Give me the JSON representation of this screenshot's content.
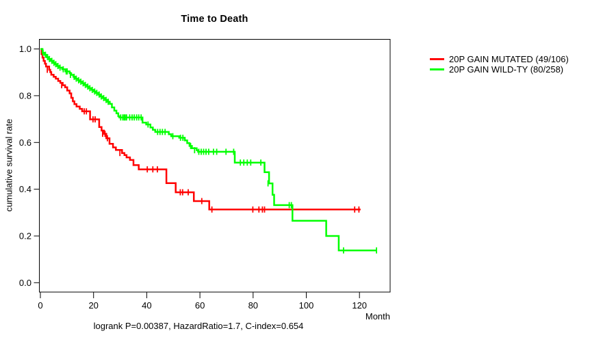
{
  "figure": {
    "title": "Time to Death",
    "y_axis_label": "cumulative survival rate",
    "x_axis_label": "Month",
    "caption": "logrank P=0.00387, HazardRatio=1.7, C-index=0.654"
  },
  "legend": {
    "entries": [
      {
        "label": "20P GAIN MUTATED (49/106)",
        "color": "#ff0000"
      },
      {
        "label": "20P GAIN WILD-TY (80/258)",
        "color": "#00ff00"
      }
    ]
  },
  "chart_data": {
    "type": "line",
    "subtype": "kaplan-meier-step",
    "title": "Time to Death",
    "xlabel": "Month",
    "ylabel": "cumulative survival rate",
    "xlim": [
      0,
      131.5
    ],
    "ylim": [
      0,
      1.05
    ],
    "grid": false,
    "legend_position": "right-outside",
    "x_ticks": [
      0,
      20,
      40,
      60,
      80,
      100,
      120
    ],
    "x_tick_labels": [
      "0",
      "20",
      "40",
      "60",
      "80",
      "100",
      "120"
    ],
    "y_ticks": [
      0.0,
      0.2,
      0.4,
      0.6,
      0.8,
      1.0
    ],
    "y_tick_labels": [
      "0.0",
      "0.2",
      "0.4",
      "0.6",
      "0.8",
      "1.0"
    ],
    "stats": {
      "logrank_p": 0.00387,
      "hazard_ratio": 1.7,
      "c_index": 0.654
    },
    "series": [
      {
        "name": "20P GAIN MUTATED (49/106)",
        "color": "#ff0000",
        "events": 49,
        "n": 106,
        "end_month": 120.4,
        "steps": [
          [
            0,
            1.0
          ],
          [
            0.4,
            0.978
          ],
          [
            0.8,
            0.963
          ],
          [
            1.2,
            0.949
          ],
          [
            1.7,
            0.937
          ],
          [
            2.1,
            0.925
          ],
          [
            3.3,
            0.911
          ],
          [
            3.7,
            0.901
          ],
          [
            4.1,
            0.89
          ],
          [
            5.0,
            0.881
          ],
          [
            5.8,
            0.873
          ],
          [
            6.7,
            0.863
          ],
          [
            7.5,
            0.855
          ],
          [
            8.4,
            0.845
          ],
          [
            9.3,
            0.836
          ],
          [
            10.1,
            0.822
          ],
          [
            11.0,
            0.81
          ],
          [
            11.6,
            0.791
          ],
          [
            12.2,
            0.776
          ],
          [
            12.8,
            0.764
          ],
          [
            13.6,
            0.754
          ],
          [
            14.8,
            0.744
          ],
          [
            15.7,
            0.733
          ],
          [
            18.7,
            0.699
          ],
          [
            22.1,
            0.666
          ],
          [
            23.0,
            0.651
          ],
          [
            23.9,
            0.637
          ],
          [
            24.8,
            0.618
          ],
          [
            26.0,
            0.594
          ],
          [
            27.3,
            0.579
          ],
          [
            28.4,
            0.568
          ],
          [
            30.7,
            0.555
          ],
          [
            31.6,
            0.546
          ],
          [
            32.4,
            0.536
          ],
          [
            33.7,
            0.525
          ],
          [
            35.0,
            0.503
          ],
          [
            37.0,
            0.485
          ],
          [
            47.4,
            0.426
          ],
          [
            50.9,
            0.387
          ],
          [
            57.7,
            0.349
          ],
          [
            63.5,
            0.313
          ]
        ],
        "censors": [
          [
            2.6,
            0.911
          ],
          [
            8.0,
            0.845
          ],
          [
            16.5,
            0.733
          ],
          [
            17.3,
            0.733
          ],
          [
            19.8,
            0.699
          ],
          [
            20.6,
            0.699
          ],
          [
            23.4,
            0.637
          ],
          [
            24.3,
            0.637
          ],
          [
            25.2,
            0.618
          ],
          [
            29.9,
            0.555
          ],
          [
            40.2,
            0.485
          ],
          [
            42.3,
            0.485
          ],
          [
            44.0,
            0.485
          ],
          [
            52.6,
            0.387
          ],
          [
            53.5,
            0.387
          ],
          [
            55.6,
            0.387
          ],
          [
            60.7,
            0.349
          ],
          [
            64.5,
            0.313
          ],
          [
            79.9,
            0.313
          ],
          [
            82.2,
            0.313
          ],
          [
            83.5,
            0.313
          ],
          [
            84.3,
            0.313
          ],
          [
            118.2,
            0.313
          ],
          [
            119.8,
            0.313
          ]
        ]
      },
      {
        "name": "20P GAIN WILD-TY (80/258)",
        "color": "#00ff00",
        "events": 80,
        "n": 258,
        "end_month": 126.4,
        "steps": [
          [
            0,
            1.0
          ],
          [
            0.8,
            0.984
          ],
          [
            1.6,
            0.975
          ],
          [
            2.4,
            0.965
          ],
          [
            3.1,
            0.957
          ],
          [
            3.9,
            0.949
          ],
          [
            4.7,
            0.941
          ],
          [
            5.5,
            0.935
          ],
          [
            6.3,
            0.927
          ],
          [
            7.1,
            0.92
          ],
          [
            8.2,
            0.913
          ],
          [
            9.4,
            0.904
          ],
          [
            11.0,
            0.896
          ],
          [
            11.6,
            0.889
          ],
          [
            12.4,
            0.881
          ],
          [
            13.2,
            0.873
          ],
          [
            14.1,
            0.866
          ],
          [
            14.9,
            0.86
          ],
          [
            15.8,
            0.853
          ],
          [
            16.6,
            0.846
          ],
          [
            17.5,
            0.839
          ],
          [
            18.3,
            0.832
          ],
          [
            19.2,
            0.825
          ],
          [
            20.1,
            0.818
          ],
          [
            20.9,
            0.812
          ],
          [
            21.8,
            0.805
          ],
          [
            22.6,
            0.797
          ],
          [
            23.5,
            0.79
          ],
          [
            24.4,
            0.782
          ],
          [
            25.2,
            0.774
          ],
          [
            26.1,
            0.765
          ],
          [
            26.9,
            0.75
          ],
          [
            27.8,
            0.736
          ],
          [
            28.6,
            0.725
          ],
          [
            29.3,
            0.712
          ],
          [
            29.7,
            0.707
          ],
          [
            38.4,
            0.685
          ],
          [
            39.8,
            0.677
          ],
          [
            41.4,
            0.664
          ],
          [
            42.3,
            0.654
          ],
          [
            43.2,
            0.645
          ],
          [
            48.3,
            0.635
          ],
          [
            49.2,
            0.627
          ],
          [
            52.2,
            0.62
          ],
          [
            54.3,
            0.609
          ],
          [
            55.2,
            0.597
          ],
          [
            56.1,
            0.585
          ],
          [
            57.0,
            0.575
          ],
          [
            58.8,
            0.567
          ],
          [
            59.3,
            0.56
          ],
          [
            73.1,
            0.514
          ],
          [
            84.3,
            0.473
          ],
          [
            86.0,
            0.425
          ],
          [
            87.3,
            0.376
          ],
          [
            87.9,
            0.332
          ],
          [
            94.8,
            0.265
          ],
          [
            107.5,
            0.2
          ],
          [
            112.2,
            0.138
          ]
        ],
        "censors": [
          [
            1.0,
            0.984
          ],
          [
            1.9,
            0.975
          ],
          [
            2.7,
            0.965
          ],
          [
            3.4,
            0.957
          ],
          [
            4.3,
            0.949
          ],
          [
            5.1,
            0.941
          ],
          [
            5.8,
            0.935
          ],
          [
            6.6,
            0.927
          ],
          [
            7.4,
            0.92
          ],
          [
            8.6,
            0.913
          ],
          [
            9.7,
            0.904
          ],
          [
            10.1,
            0.904
          ],
          [
            11.3,
            0.889
          ],
          [
            12.7,
            0.881
          ],
          [
            13.5,
            0.873
          ],
          [
            14.4,
            0.866
          ],
          [
            15.2,
            0.86
          ],
          [
            16.1,
            0.853
          ],
          [
            16.9,
            0.846
          ],
          [
            17.8,
            0.839
          ],
          [
            18.6,
            0.832
          ],
          [
            19.5,
            0.825
          ],
          [
            20.4,
            0.818
          ],
          [
            21.2,
            0.812
          ],
          [
            22.1,
            0.805
          ],
          [
            22.9,
            0.797
          ],
          [
            23.8,
            0.79
          ],
          [
            24.7,
            0.782
          ],
          [
            25.5,
            0.774
          ],
          [
            30.2,
            0.707
          ],
          [
            31.0,
            0.707
          ],
          [
            31.5,
            0.707
          ],
          [
            31.9,
            0.707
          ],
          [
            32.4,
            0.707
          ],
          [
            33.6,
            0.707
          ],
          [
            34.5,
            0.707
          ],
          [
            35.3,
            0.707
          ],
          [
            36.2,
            0.707
          ],
          [
            37.0,
            0.707
          ],
          [
            37.9,
            0.707
          ],
          [
            40.5,
            0.677
          ],
          [
            44.1,
            0.645
          ],
          [
            45.0,
            0.645
          ],
          [
            45.9,
            0.645
          ],
          [
            46.9,
            0.645
          ],
          [
            49.8,
            0.627
          ],
          [
            52.7,
            0.62
          ],
          [
            53.6,
            0.62
          ],
          [
            56.5,
            0.585
          ],
          [
            58.0,
            0.567
          ],
          [
            59.6,
            0.56
          ],
          [
            60.5,
            0.56
          ],
          [
            61.4,
            0.56
          ],
          [
            62.3,
            0.56
          ],
          [
            63.3,
            0.56
          ],
          [
            65.1,
            0.56
          ],
          [
            66.3,
            0.56
          ],
          [
            69.8,
            0.56
          ],
          [
            72.7,
            0.56
          ],
          [
            75.2,
            0.514
          ],
          [
            76.5,
            0.514
          ],
          [
            77.8,
            0.514
          ],
          [
            79.1,
            0.514
          ],
          [
            82.9,
            0.514
          ],
          [
            85.6,
            0.425
          ],
          [
            93.6,
            0.332
          ],
          [
            94.4,
            0.332
          ],
          [
            114.0,
            0.138
          ],
          [
            126.4,
            0.138
          ]
        ]
      }
    ]
  }
}
